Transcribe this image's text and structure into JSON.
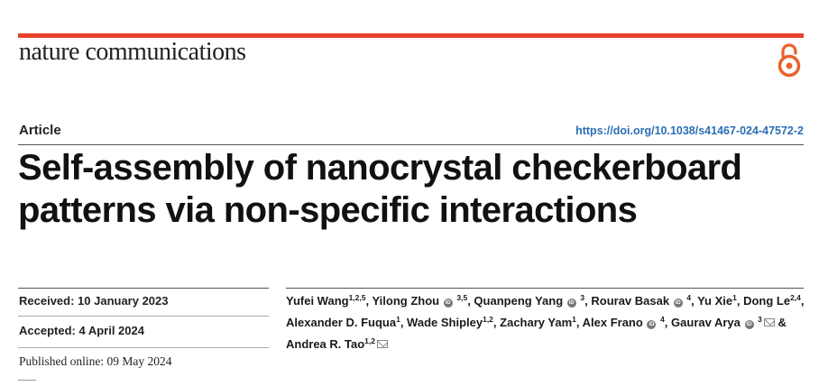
{
  "journal": {
    "name": "nature communications",
    "icon": "open-access-icon"
  },
  "article": {
    "type": "Article",
    "doi": "https://doi.org/10.1038/s41467-024-47572-2",
    "title_line1": "Self-assembly of nanocrystal checkerboard",
    "title_line2": "patterns via non-specific interactions"
  },
  "dates": {
    "received": "Received: 10 January 2023",
    "accepted": "Accepted: 4 April 2024",
    "published": "Published online: 09 May 2024"
  },
  "authors": [
    {
      "name": "Yufei Wang",
      "aff": "1,2,5",
      "orcid": false,
      "email": false
    },
    {
      "name": "Yilong Zhou",
      "aff": "3,5",
      "orcid": true,
      "email": false
    },
    {
      "name": "Quanpeng Yang",
      "aff": "3",
      "orcid": true,
      "email": false
    },
    {
      "name": "Rourav Basak",
      "aff": "4",
      "orcid": true,
      "email": false
    },
    {
      "name": "Yu Xie",
      "aff": "1",
      "orcid": false,
      "email": false
    },
    {
      "name": "Dong Le",
      "aff": "2,4",
      "orcid": false,
      "email": false
    },
    {
      "name": "Alexander D. Fuqua",
      "aff": "1",
      "orcid": false,
      "email": false
    },
    {
      "name": "Wade Shipley",
      "aff": "1,2",
      "orcid": false,
      "email": false
    },
    {
      "name": "Zachary Yam",
      "aff": "1",
      "orcid": false,
      "email": false
    },
    {
      "name": "Alex Frano",
      "aff": "4",
      "orcid": true,
      "email": false
    },
    {
      "name": "Gaurav Arya",
      "aff": "3",
      "orcid": true,
      "email": true
    },
    {
      "name": "Andrea R. Tao",
      "aff": "1,2",
      "orcid": false,
      "email": true
    }
  ],
  "author_separators": {
    "comma": ", ",
    "and": " & "
  },
  "colors": {
    "accent": "#e8432b",
    "doi": "#2a6fb5"
  }
}
